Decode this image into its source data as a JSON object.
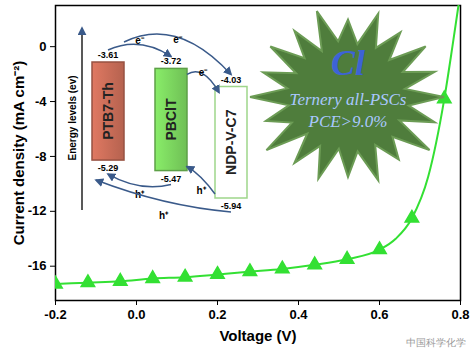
{
  "chart_data": {
    "type": "line",
    "xlabel": "Voltage (V)",
    "ylabel": "Current density (mA cm⁻²)",
    "xlim": [
      -0.2,
      0.8
    ],
    "xticks": [
      -0.2,
      {
        "value": 0,
        "label": "0.0"
      },
      0.2,
      0.4,
      0.6,
      0.8
    ],
    "ylim": [
      -18.5,
      3
    ],
    "yticks": [
      -16,
      -12,
      -8,
      -4,
      0
    ],
    "grid": false,
    "series": [
      {
        "type": "line",
        "color": "#33e033",
        "x": [
          -0.2,
          -0.12,
          -0.04,
          0.04,
          0.12,
          0.2,
          0.28,
          0.36,
          0.44,
          0.52,
          0.6,
          0.64,
          0.68,
          0.72,
          0.76,
          0.78,
          0.795
        ],
        "values": [
          -17.3,
          -17.2,
          -17.1,
          -16.9,
          -16.8,
          -16.6,
          -16.4,
          -16.2,
          -15.9,
          -15.5,
          -14.8,
          -14.0,
          -12.5,
          -9.5,
          -3.8,
          0.0,
          3.0
        ]
      },
      {
        "type": "scatter",
        "marker": "triangle",
        "color": "#33e033",
        "x": [
          -0.2,
          -0.12,
          -0.04,
          0.04,
          0.12,
          0.2,
          0.28,
          0.36,
          0.44,
          0.52,
          0.6,
          0.68,
          0.76
        ],
        "values": [
          -17.3,
          -17.2,
          -17.1,
          -16.9,
          -16.8,
          -16.6,
          -16.4,
          -16.2,
          -15.9,
          -15.5,
          -14.8,
          -12.5,
          -3.8
        ]
      }
    ]
  },
  "energy_diagram": {
    "axis_label": "Energy levels (ev)",
    "electron_label": "e⁻",
    "hole_label": "h⁺",
    "materials": [
      {
        "name": "PTB7-Th",
        "lumo": -3.61,
        "homo": -5.29,
        "color": "#b5624f"
      },
      {
        "name": "PBClT",
        "lumo": -3.72,
        "homo": -5.47,
        "color": "#6fbf55"
      },
      {
        "name": "NDP-V-C7",
        "lumo": -4.03,
        "homo": -5.94,
        "color": "#ffffff"
      }
    ]
  },
  "badge": {
    "symbol": "Cl",
    "lines": [
      "Ternery all-PSCs",
      "PCE>9.0%"
    ]
  },
  "watermark": "中国科学化学"
}
